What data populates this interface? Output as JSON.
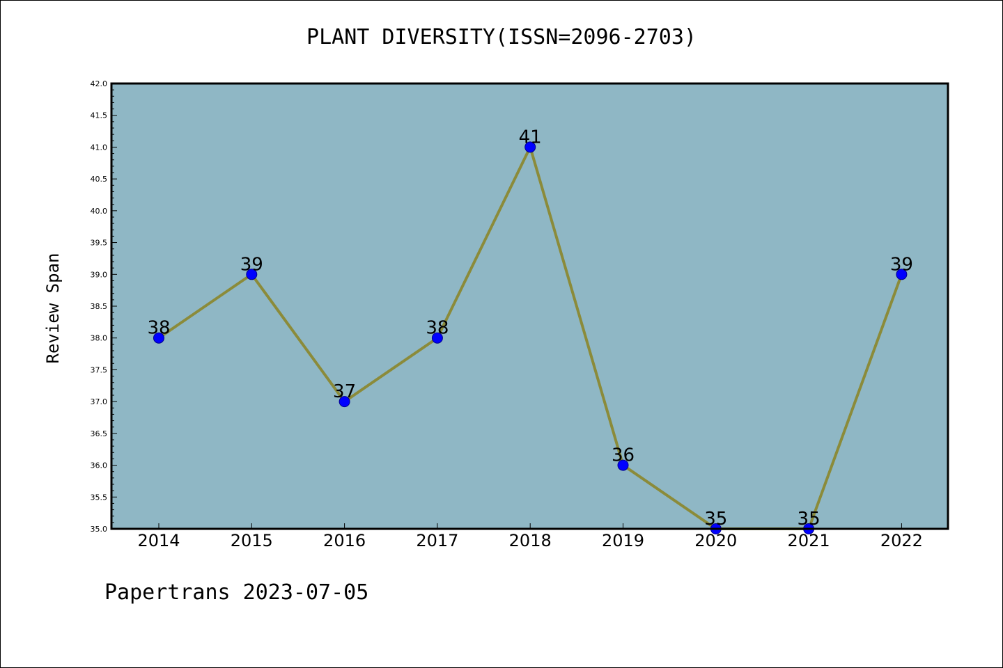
{
  "chart_data": {
    "type": "line",
    "title": "PLANT DIVERSITY(ISSN=2096-2703)",
    "xlabel": "",
    "ylabel": "Review Span",
    "categories": [
      "2014",
      "2015",
      "2016",
      "2017",
      "2018",
      "2019",
      "2020",
      "2021",
      "2022"
    ],
    "values": [
      38,
      39,
      37,
      38,
      41,
      36,
      35,
      35,
      39
    ],
    "data_labels": [
      "38",
      "39",
      "37",
      "38",
      "41",
      "36",
      "35",
      "35",
      "39"
    ],
    "ylim": [
      35.0,
      42.0
    ],
    "yticks": [
      "35.0",
      "35.5",
      "36.0",
      "36.5",
      "37.0",
      "37.5",
      "38.0",
      "38.5",
      "39.0",
      "39.5",
      "40.0",
      "40.5",
      "41.0",
      "41.5",
      "42.0"
    ],
    "grid": false,
    "legend": "none"
  },
  "footer": "Papertrans 2023-07-05",
  "colors": {
    "plot_background": "#8fb7c5",
    "line": "#8b8b3a",
    "marker": "#0000ff",
    "marker_edge": "#00008b"
  }
}
